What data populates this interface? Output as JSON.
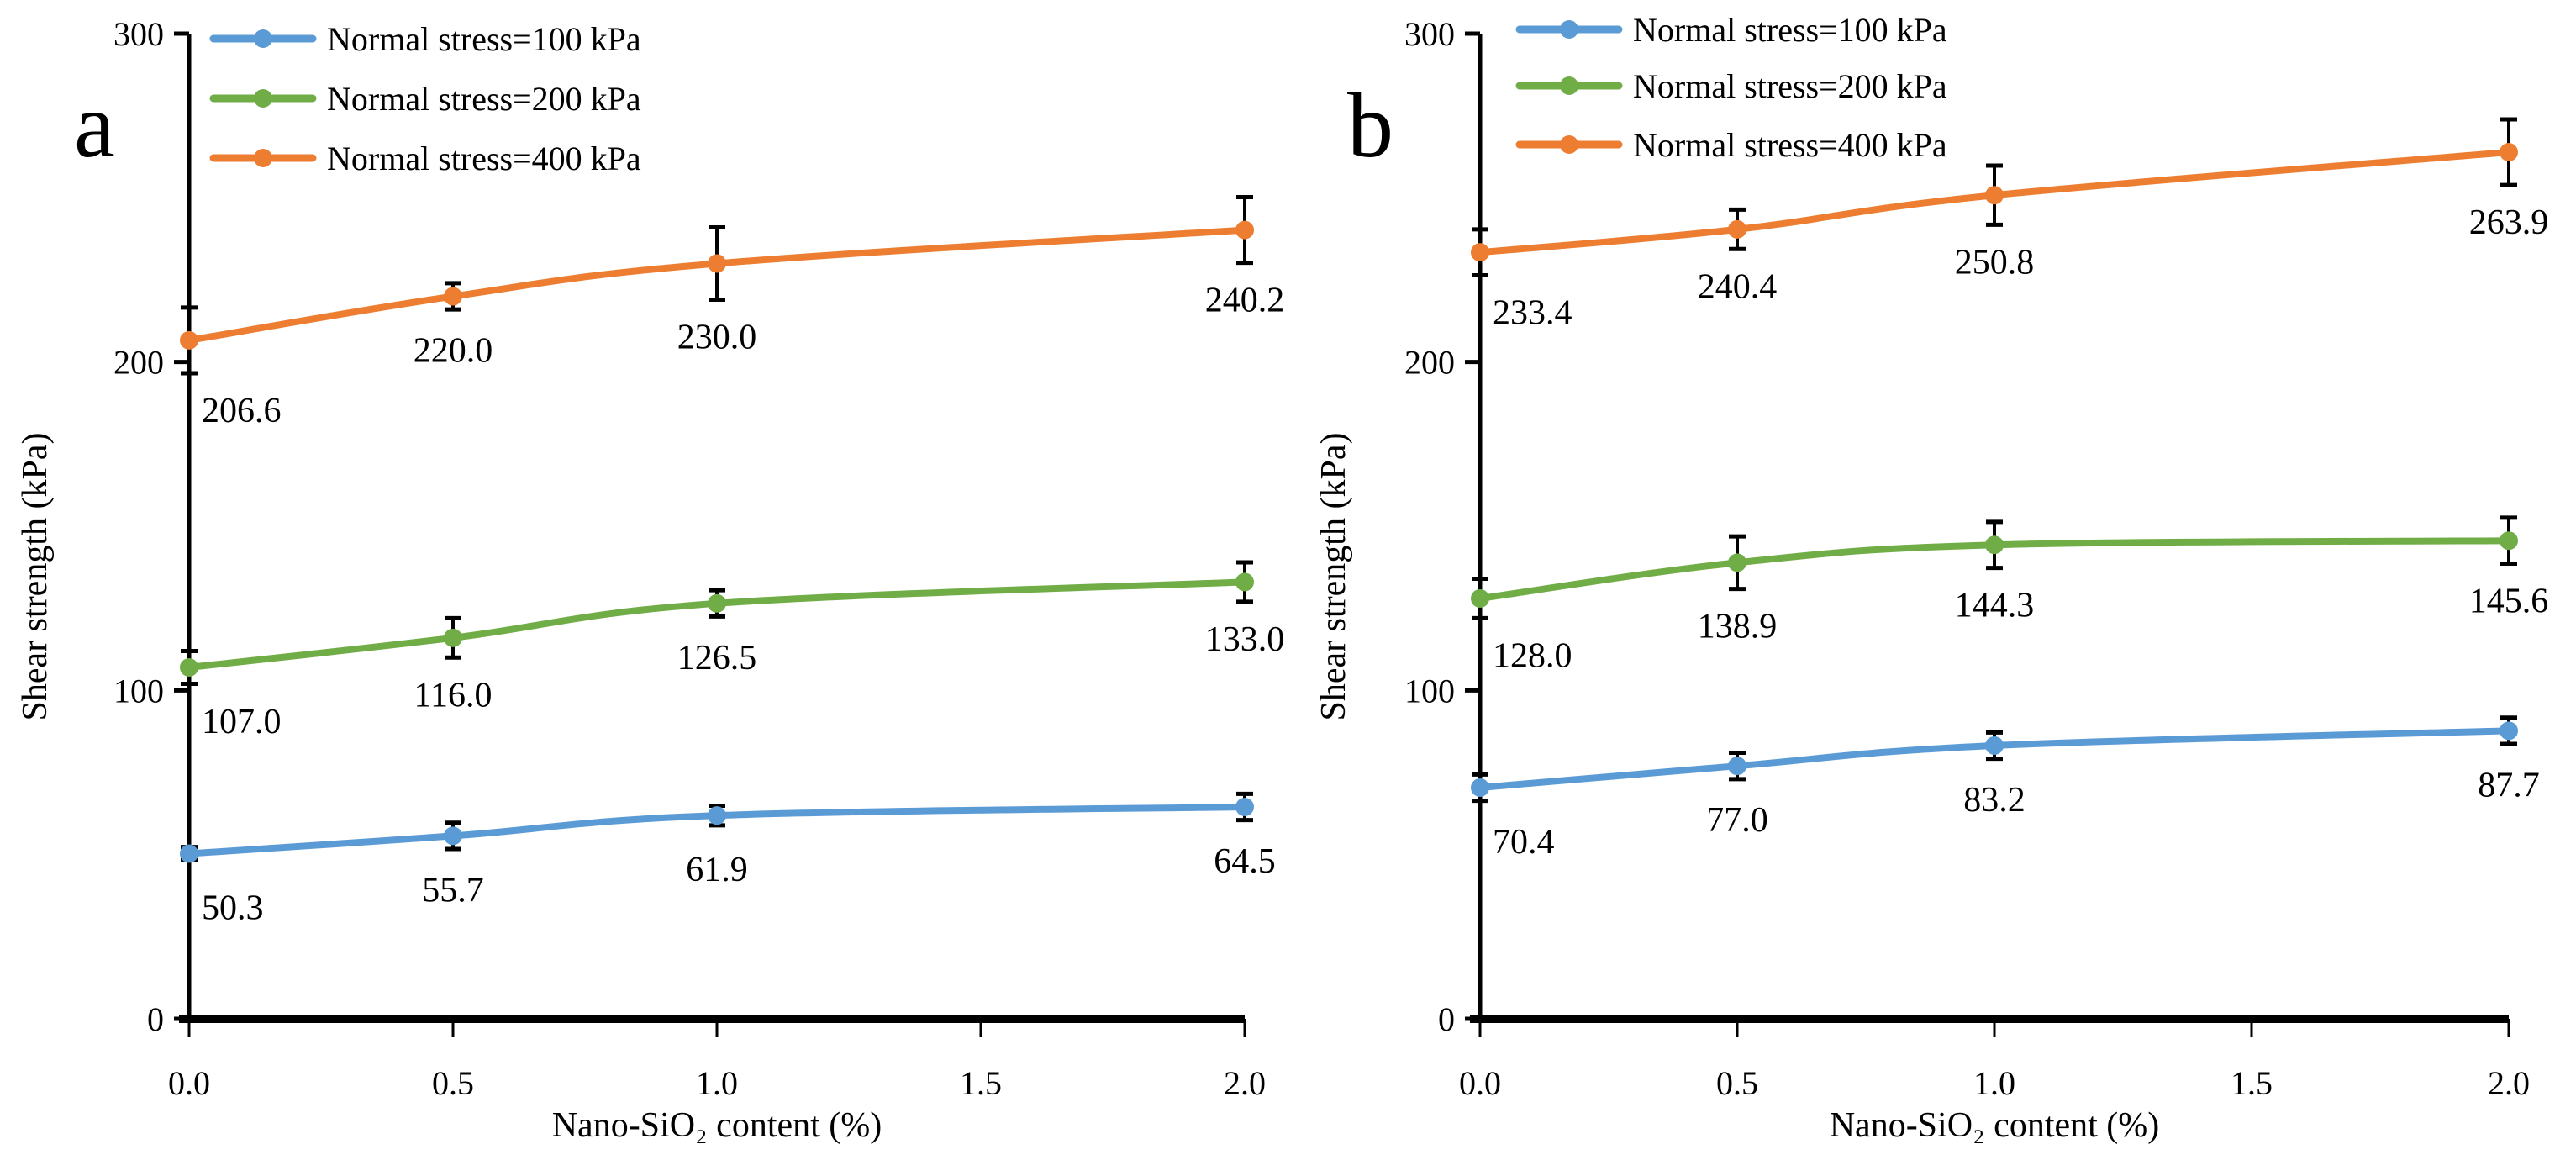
{
  "chart_data": [
    {
      "type": "line",
      "panel_label": "a",
      "xlabel": "Nano-SiO₂ content (%)",
      "ylabel": "Shear strength (kPa)",
      "xlim": [
        0,
        2
      ],
      "ylim": [
        0,
        300
      ],
      "x_ticks": [
        "0.0",
        "0.5",
        "1.0",
        "1.5",
        "2.0"
      ],
      "y_ticks": [
        "0",
        "100",
        "200",
        "300"
      ],
      "grid": false,
      "legend_position": "top-left",
      "x": [
        0,
        0.5,
        1.0,
        2.0
      ],
      "series": [
        {
          "name": "Normal stress=100 kPa",
          "color": "#5b9bd5",
          "values": [
            50.3,
            55.7,
            61.9,
            64.5
          ],
          "labels": [
            "50.3",
            "55.7",
            "61.9",
            "64.5"
          ],
          "errors": [
            2,
            4,
            3,
            4
          ]
        },
        {
          "name": "Normal stress=200 kPa",
          "color": "#70ad47",
          "values": [
            107.0,
            116.0,
            126.5,
            133.0
          ],
          "labels": [
            "107.0",
            "116.0",
            "126.5",
            "133.0"
          ],
          "errors": [
            5,
            6,
            4,
            6
          ]
        },
        {
          "name": "Normal stress=400 kPa",
          "color": "#ed7d31",
          "values": [
            206.6,
            220.0,
            230.0,
            240.2
          ],
          "labels": [
            "206.6",
            "220.0",
            "230.0",
            "240.2"
          ],
          "errors": [
            10,
            4,
            11,
            10
          ]
        }
      ]
    },
    {
      "type": "line",
      "panel_label": "b",
      "xlabel": "Nano-SiO₂ content (%)",
      "ylabel": "Shear strength (kPa)",
      "xlim": [
        0,
        2
      ],
      "ylim": [
        0,
        300
      ],
      "x_ticks": [
        "0.0",
        "0.5",
        "1.0",
        "1.5",
        "2.0"
      ],
      "y_ticks": [
        "0",
        "100",
        "200",
        "300"
      ],
      "grid": false,
      "legend_position": "top-left",
      "x": [
        0,
        0.5,
        1.0,
        2.0
      ],
      "series": [
        {
          "name": "Normal stress=100 kPa",
          "color": "#5b9bd5",
          "values": [
            70.4,
            77.0,
            83.2,
            87.7
          ],
          "labels": [
            "70.4",
            "77.0",
            "83.2",
            "87.7"
          ],
          "errors": [
            4,
            4,
            4,
            4
          ]
        },
        {
          "name": "Normal stress=200 kPa",
          "color": "#70ad47",
          "values": [
            128.0,
            138.9,
            144.3,
            145.6
          ],
          "labels": [
            "128.0",
            "138.9",
            "144.3",
            "145.6"
          ],
          "errors": [
            6,
            8,
            7,
            7
          ]
        },
        {
          "name": "Normal stress=400 kPa",
          "color": "#ed7d31",
          "values": [
            233.4,
            240.4,
            250.8,
            263.9
          ],
          "labels": [
            "233.4",
            "240.4",
            "250.8",
            "263.9"
          ],
          "errors": [
            7,
            6,
            9,
            10
          ]
        }
      ]
    }
  ]
}
